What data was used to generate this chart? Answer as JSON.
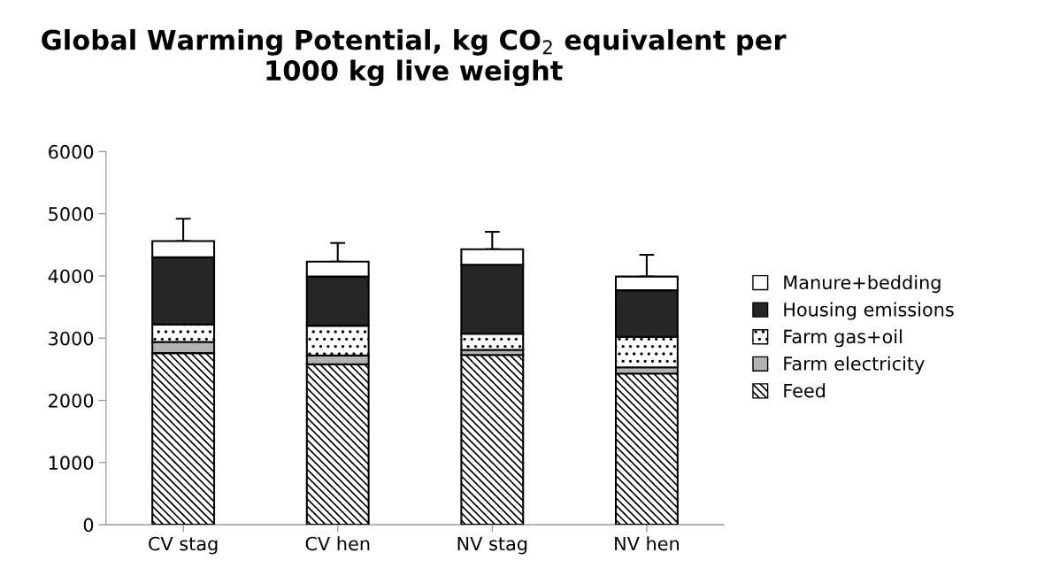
{
  "chart_data": {
    "type": "bar",
    "stacked": true,
    "title": "Global Warming Potential, kg CO$_{2}$ equivalent per 1000 kg live weight",
    "categories": [
      "CV stag",
      "CV hen",
      "NV stag",
      "NV hen"
    ],
    "series": [
      {
        "name": "Feed",
        "color": "#000000",
        "values": [
          2760,
          2580,
          2730,
          2430
        ]
      },
      {
        "name": "Farm electricity",
        "color": "#b3b3b3",
        "values": [
          180,
          140,
          80,
          100
        ]
      },
      {
        "name": "Farm gas+oil",
        "color": "#000000",
        "values": [
          280,
          480,
          260,
          490
        ]
      },
      {
        "name": "Housing emissions",
        "color": "#262626",
        "values": [
          1080,
          790,
          1110,
          750
        ]
      },
      {
        "name": "Manure+bedding",
        "color": "#ffffff",
        "values": [
          260,
          240,
          250,
          220
        ],
        "errors": [
          360,
          300,
          280,
          350
        ]
      }
    ],
    "ylim": [
      0,
      6000
    ],
    "yticks": [
      0,
      1000,
      2000,
      3000,
      4000,
      5000,
      6000
    ],
    "grid": false,
    "legend": "right"
  }
}
